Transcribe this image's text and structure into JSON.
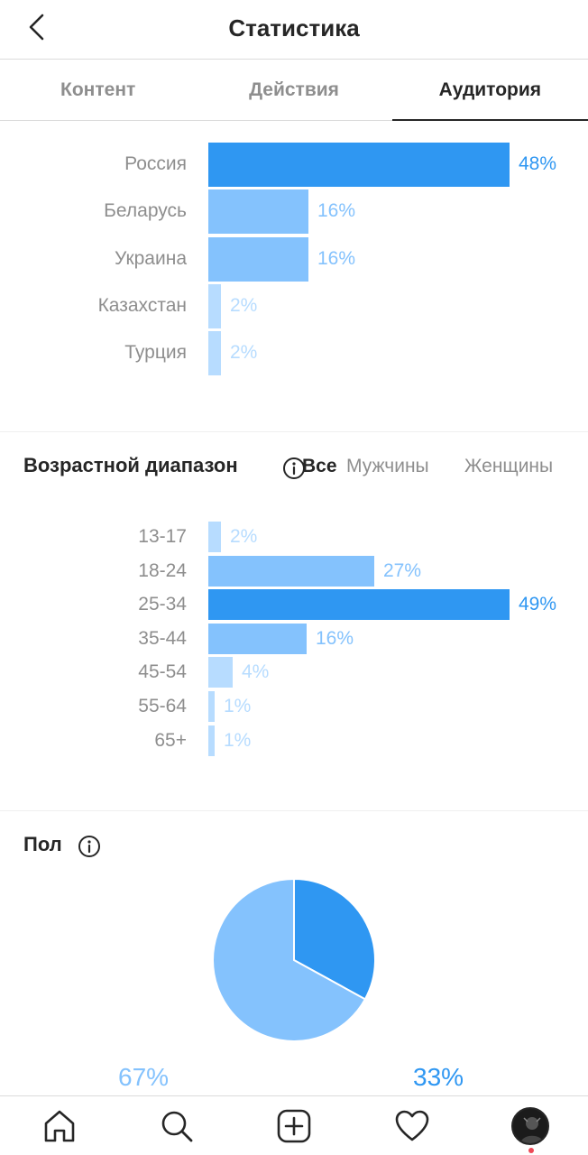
{
  "header": {
    "title": "Статистика"
  },
  "tabs": [
    {
      "label": "Контент",
      "active": false
    },
    {
      "label": "Действия",
      "active": false
    },
    {
      "label": "Аудитория",
      "active": true
    }
  ],
  "locations": {
    "items": [
      {
        "label": "Россия",
        "value": 48,
        "value_text": "48%"
      },
      {
        "label": "Беларусь",
        "value": 16,
        "value_text": "16%"
      },
      {
        "label": "Украина",
        "value": 16,
        "value_text": "16%"
      },
      {
        "label": "Казахстан",
        "value": 2,
        "value_text": "2%"
      },
      {
        "label": "Турция",
        "value": 2,
        "value_text": "2%"
      }
    ]
  },
  "age": {
    "title": "Возрастной диапазон",
    "filters": [
      {
        "label": "Все",
        "active": true
      },
      {
        "label": "Мужчины",
        "active": false
      },
      {
        "label": "Женщины",
        "active": false
      }
    ],
    "items": [
      {
        "label": "13-17",
        "value": 2,
        "value_text": "2%"
      },
      {
        "label": "18-24",
        "value": 27,
        "value_text": "27%"
      },
      {
        "label": "25-34",
        "value": 49,
        "value_text": "49%"
      },
      {
        "label": "35-44",
        "value": 16,
        "value_text": "16%"
      },
      {
        "label": "45-54",
        "value": 4,
        "value_text": "4%"
      },
      {
        "label": "55-64",
        "value": 1,
        "value_text": "1%"
      },
      {
        "label": "65+",
        "value": 1,
        "value_text": "1%"
      }
    ]
  },
  "gender": {
    "title": "Пол",
    "slices": [
      {
        "value": 67,
        "value_text": "67%",
        "color": "#84c2fd"
      },
      {
        "value": 33,
        "value_text": "33%",
        "color": "#2f97f2"
      }
    ]
  },
  "colors": {
    "accent": "#2f97f2",
    "bar_mid": "#84c2fd",
    "bar_low": "#b7dcff",
    "notification": "#ed4956"
  },
  "tabbar": {
    "items": [
      {
        "icon": "home-icon"
      },
      {
        "icon": "search-icon"
      },
      {
        "icon": "add-post-icon"
      },
      {
        "icon": "heart-icon"
      },
      {
        "icon": "profile-avatar"
      }
    ]
  }
}
